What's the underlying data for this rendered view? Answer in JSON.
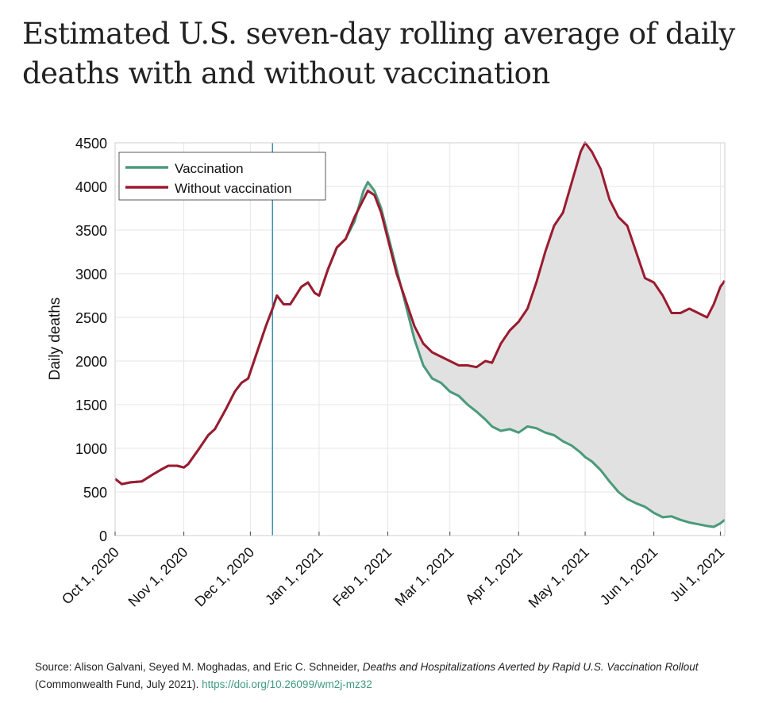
{
  "chart_data": {
    "type": "line",
    "title": "Estimated U.S. seven-day rolling average of daily deaths with and without vaccination",
    "xlabel": "",
    "ylabel": "Daily deaths",
    "ylim": [
      0,
      4500
    ],
    "yticks": [
      0,
      500,
      1000,
      1500,
      2000,
      2500,
      3000,
      3500,
      4000,
      4500
    ],
    "xlim_days": [
      0,
      275
    ],
    "xticks": [
      {
        "day": 0,
        "label": "Oct 1, 2020"
      },
      {
        "day": 31,
        "label": "Nov 1, 2020"
      },
      {
        "day": 61,
        "label": "Dec 1, 2020"
      },
      {
        "day": 92,
        "label": "Jan 1, 2021"
      },
      {
        "day": 123,
        "label": "Feb 1, 2021"
      },
      {
        "day": 151,
        "label": "Mar 1, 2021"
      },
      {
        "day": 182,
        "label": "Apr 1, 2021"
      },
      {
        "day": 212,
        "label": "May 1, 2021"
      },
      {
        "day": 243,
        "label": "Jun 1, 2021"
      },
      {
        "day": 273,
        "label": "Jul 1, 2021"
      }
    ],
    "grid": true,
    "legend_position": "top-left",
    "vaccination_start_day": 71,
    "x_days_since_2020_10_01": [
      0,
      3,
      7,
      12,
      17,
      21,
      24,
      28,
      31,
      33,
      38,
      42,
      45,
      50,
      54,
      57,
      60,
      64,
      68,
      71,
      73,
      76,
      79,
      84,
      87,
      90,
      92,
      96,
      100,
      104,
      108,
      112,
      114,
      117,
      120,
      123,
      127,
      131,
      135,
      139,
      143,
      147,
      151,
      155,
      159,
      163,
      167,
      170,
      174,
      178,
      182,
      186,
      190,
      194,
      198,
      202,
      206,
      210,
      212,
      215,
      219,
      223,
      227,
      231,
      235,
      239,
      243,
      247,
      251,
      255,
      259,
      263,
      267,
      270,
      273,
      275
    ],
    "series": [
      {
        "name": "Vaccination",
        "color": "#4a9a7c",
        "values": [
          650,
          590,
          610,
          620,
          700,
          760,
          800,
          800,
          780,
          820,
          1000,
          1150,
          1220,
          1450,
          1650,
          1750,
          1800,
          2100,
          2400,
          2600,
          2750,
          2650,
          2650,
          2850,
          2900,
          2780,
          2750,
          3050,
          3300,
          3400,
          3600,
          3950,
          4050,
          3950,
          3750,
          3450,
          3050,
          2650,
          2250,
          1950,
          1800,
          1750,
          1650,
          1600,
          1500,
          1420,
          1330,
          1250,
          1200,
          1220,
          1180,
          1250,
          1230,
          1180,
          1150,
          1080,
          1030,
          950,
          900,
          850,
          750,
          620,
          500,
          420,
          370,
          330,
          260,
          210,
          220,
          180,
          150,
          130,
          110,
          100,
          140,
          180
        ]
      },
      {
        "name": "Without vaccination",
        "color": "#9b1b30",
        "values": [
          650,
          590,
          610,
          620,
          700,
          760,
          800,
          800,
          780,
          820,
          1000,
          1150,
          1220,
          1450,
          1650,
          1750,
          1800,
          2100,
          2400,
          2600,
          2750,
          2650,
          2650,
          2850,
          2900,
          2780,
          2750,
          3050,
          3300,
          3400,
          3650,
          3850,
          3950,
          3900,
          3700,
          3400,
          3000,
          2700,
          2400,
          2200,
          2100,
          2050,
          2000,
          1950,
          1950,
          1930,
          2000,
          1980,
          2200,
          2350,
          2450,
          2600,
          2900,
          3250,
          3550,
          3700,
          4050,
          4400,
          4500,
          4400,
          4200,
          3850,
          3650,
          3550,
          3250,
          2950,
          2900,
          2750,
          2550,
          2550,
          2600,
          2550,
          2500,
          2650,
          2850,
          2920
        ]
      }
    ]
  },
  "source": {
    "prefix": "Source: Alison Galvani, Seyed M. Moghadas, and Eric C. Schneider, ",
    "title": "Deaths and Hospitalizations Averted by Rapid U.S. Vaccination Rollout",
    "suffix": " (Commonwealth Fund, July 2021). ",
    "link": "https://doi.org/10.26099/wm2j-mz32"
  }
}
